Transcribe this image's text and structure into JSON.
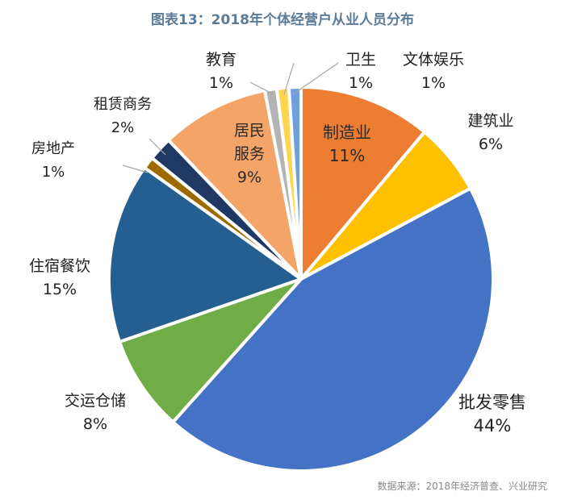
{
  "title": "图表13：2018年个体经营户从业人员分布",
  "source": "数据来源：2018年经济普查、兴业研究",
  "chart_data": {
    "type": "pie",
    "title": "图表13：2018年个体经营户从业人员分布",
    "start_angle_deg": 0,
    "direction": "clockwise",
    "slices": [
      {
        "name": "制造业",
        "value": 11,
        "label": "11%",
        "color": "#ED7D31"
      },
      {
        "name": "建筑业",
        "value": 6,
        "label": "6%",
        "color": "#FFC000"
      },
      {
        "name": "批发零售",
        "value": 44,
        "label": "44%",
        "color": "#4472C4"
      },
      {
        "name": "交运仓储",
        "value": 8,
        "label": "8%",
        "color": "#70AD47"
      },
      {
        "name": "住宿餐饮",
        "value": 15,
        "label": "15%",
        "color": "#255E91"
      },
      {
        "name": "房地产",
        "value": 1,
        "label": "1%",
        "color": "#9E6A00"
      },
      {
        "name": "租赁商务",
        "value": 2,
        "label": "2%",
        "color": "#1F3864"
      },
      {
        "name": "居民服务",
        "value": 9,
        "label": "9%",
        "color": "#F4A466"
      },
      {
        "name": "教育",
        "value": 1,
        "label": "1%",
        "color": "#B4B4B4"
      },
      {
        "name": "卫生",
        "value": 1,
        "label": "1%",
        "color": "#FFD54F"
      },
      {
        "name": "文体娱乐",
        "value": 1,
        "label": "1%",
        "color": "#6F9FE0"
      }
    ]
  }
}
